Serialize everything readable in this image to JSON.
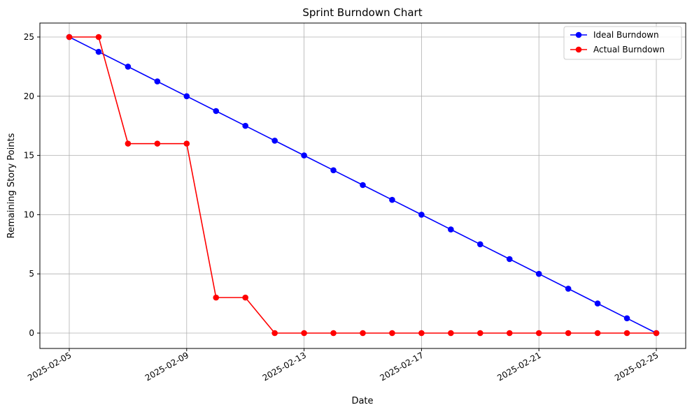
{
  "chart_data": {
    "type": "line",
    "title": "Sprint Burndown Chart",
    "xlabel": "Date",
    "ylabel": "Remaining Story Points",
    "x": [
      "2025-02-05",
      "2025-02-06",
      "2025-02-07",
      "2025-02-08",
      "2025-02-09",
      "2025-02-10",
      "2025-02-11",
      "2025-02-12",
      "2025-02-13",
      "2025-02-14",
      "2025-02-15",
      "2025-02-16",
      "2025-02-17",
      "2025-02-18",
      "2025-02-19",
      "2025-02-20",
      "2025-02-21",
      "2025-02-22",
      "2025-02-23",
      "2025-02-24",
      "2025-02-25"
    ],
    "xticks": [
      "2025-02-05",
      "2025-02-09",
      "2025-02-13",
      "2025-02-17",
      "2025-02-21",
      "2025-02-25"
    ],
    "yticks": [
      0,
      5,
      10,
      15,
      20,
      25
    ],
    "xlim": [
      "2025-02-05",
      "2025-02-25"
    ],
    "ylim": [
      0,
      25
    ],
    "grid": true,
    "legend_position": "top-right",
    "series": [
      {
        "name": "Ideal Burndown",
        "color": "#0000ff",
        "marker": "circle",
        "values": [
          25,
          23.75,
          22.5,
          21.25,
          20,
          18.75,
          17.5,
          16.25,
          15,
          13.75,
          12.5,
          11.25,
          10,
          8.75,
          7.5,
          6.25,
          5,
          3.75,
          2.5,
          1.25,
          0
        ]
      },
      {
        "name": "Actual Burndown",
        "color": "#ff0000",
        "marker": "circle",
        "values": [
          25,
          25,
          16,
          16,
          16,
          3,
          3,
          0,
          0,
          0,
          0,
          0,
          0,
          0,
          0,
          0,
          0,
          0,
          0,
          0,
          0
        ]
      }
    ]
  }
}
